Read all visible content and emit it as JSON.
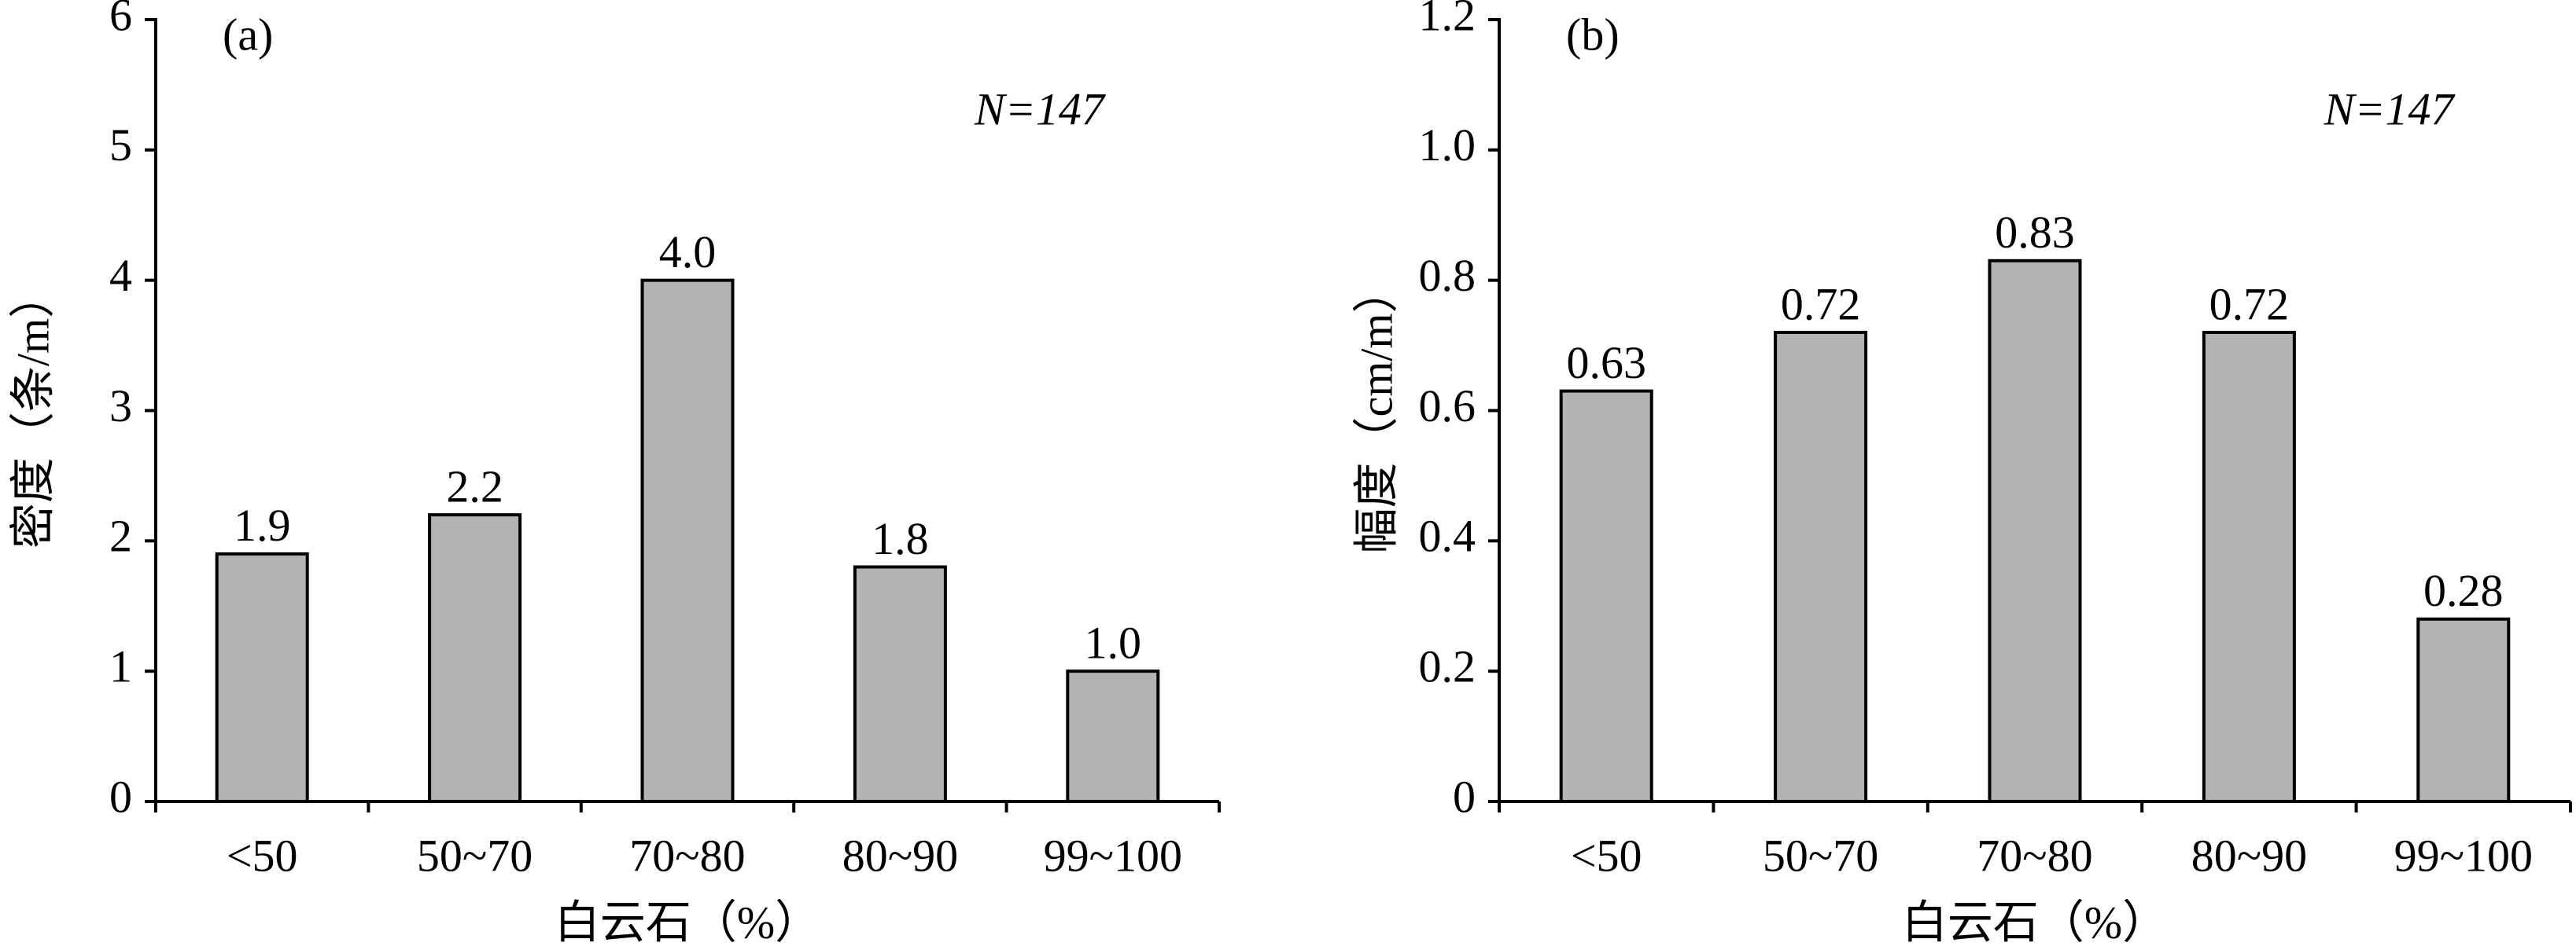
{
  "chart_data": [
    {
      "type": "bar",
      "annotations": [
        "(a)",
        "N=147"
      ],
      "ylabel": "密度（条/m）",
      "xlabel": "白云石（%）",
      "categories": [
        "<50",
        "50~70",
        "70~80",
        "80~90",
        "99~100"
      ],
      "values": [
        1.9,
        2.2,
        4.0,
        1.8,
        1.0
      ],
      "value_labels": [
        "1.9",
        "2.2",
        "4.0",
        "1.8",
        "1.0"
      ],
      "color": "#b3b3b3",
      "ylim": [
        0,
        6
      ],
      "yticks": [
        0,
        1,
        2,
        3,
        4,
        5,
        6
      ]
    },
    {
      "type": "bar",
      "annotations": [
        "(b)",
        "N=147"
      ],
      "ylabel": "幅度（cm/m）",
      "xlabel": "白云石（%）",
      "categories": [
        "<50",
        "50~70",
        "70~80",
        "80~90",
        "99~100"
      ],
      "values": [
        0.63,
        0.72,
        0.83,
        0.72,
        0.28
      ],
      "value_labels": [
        "0.63",
        "0.72",
        "0.83",
        "0.72",
        "0.28"
      ],
      "color": "#b3b3b3",
      "ylim": [
        0,
        1.2
      ],
      "yticks": [
        0,
        0.2,
        0.4,
        0.6,
        0.8,
        {
          "value": 1,
          "label": "1.0"
        },
        1.2
      ]
    }
  ]
}
